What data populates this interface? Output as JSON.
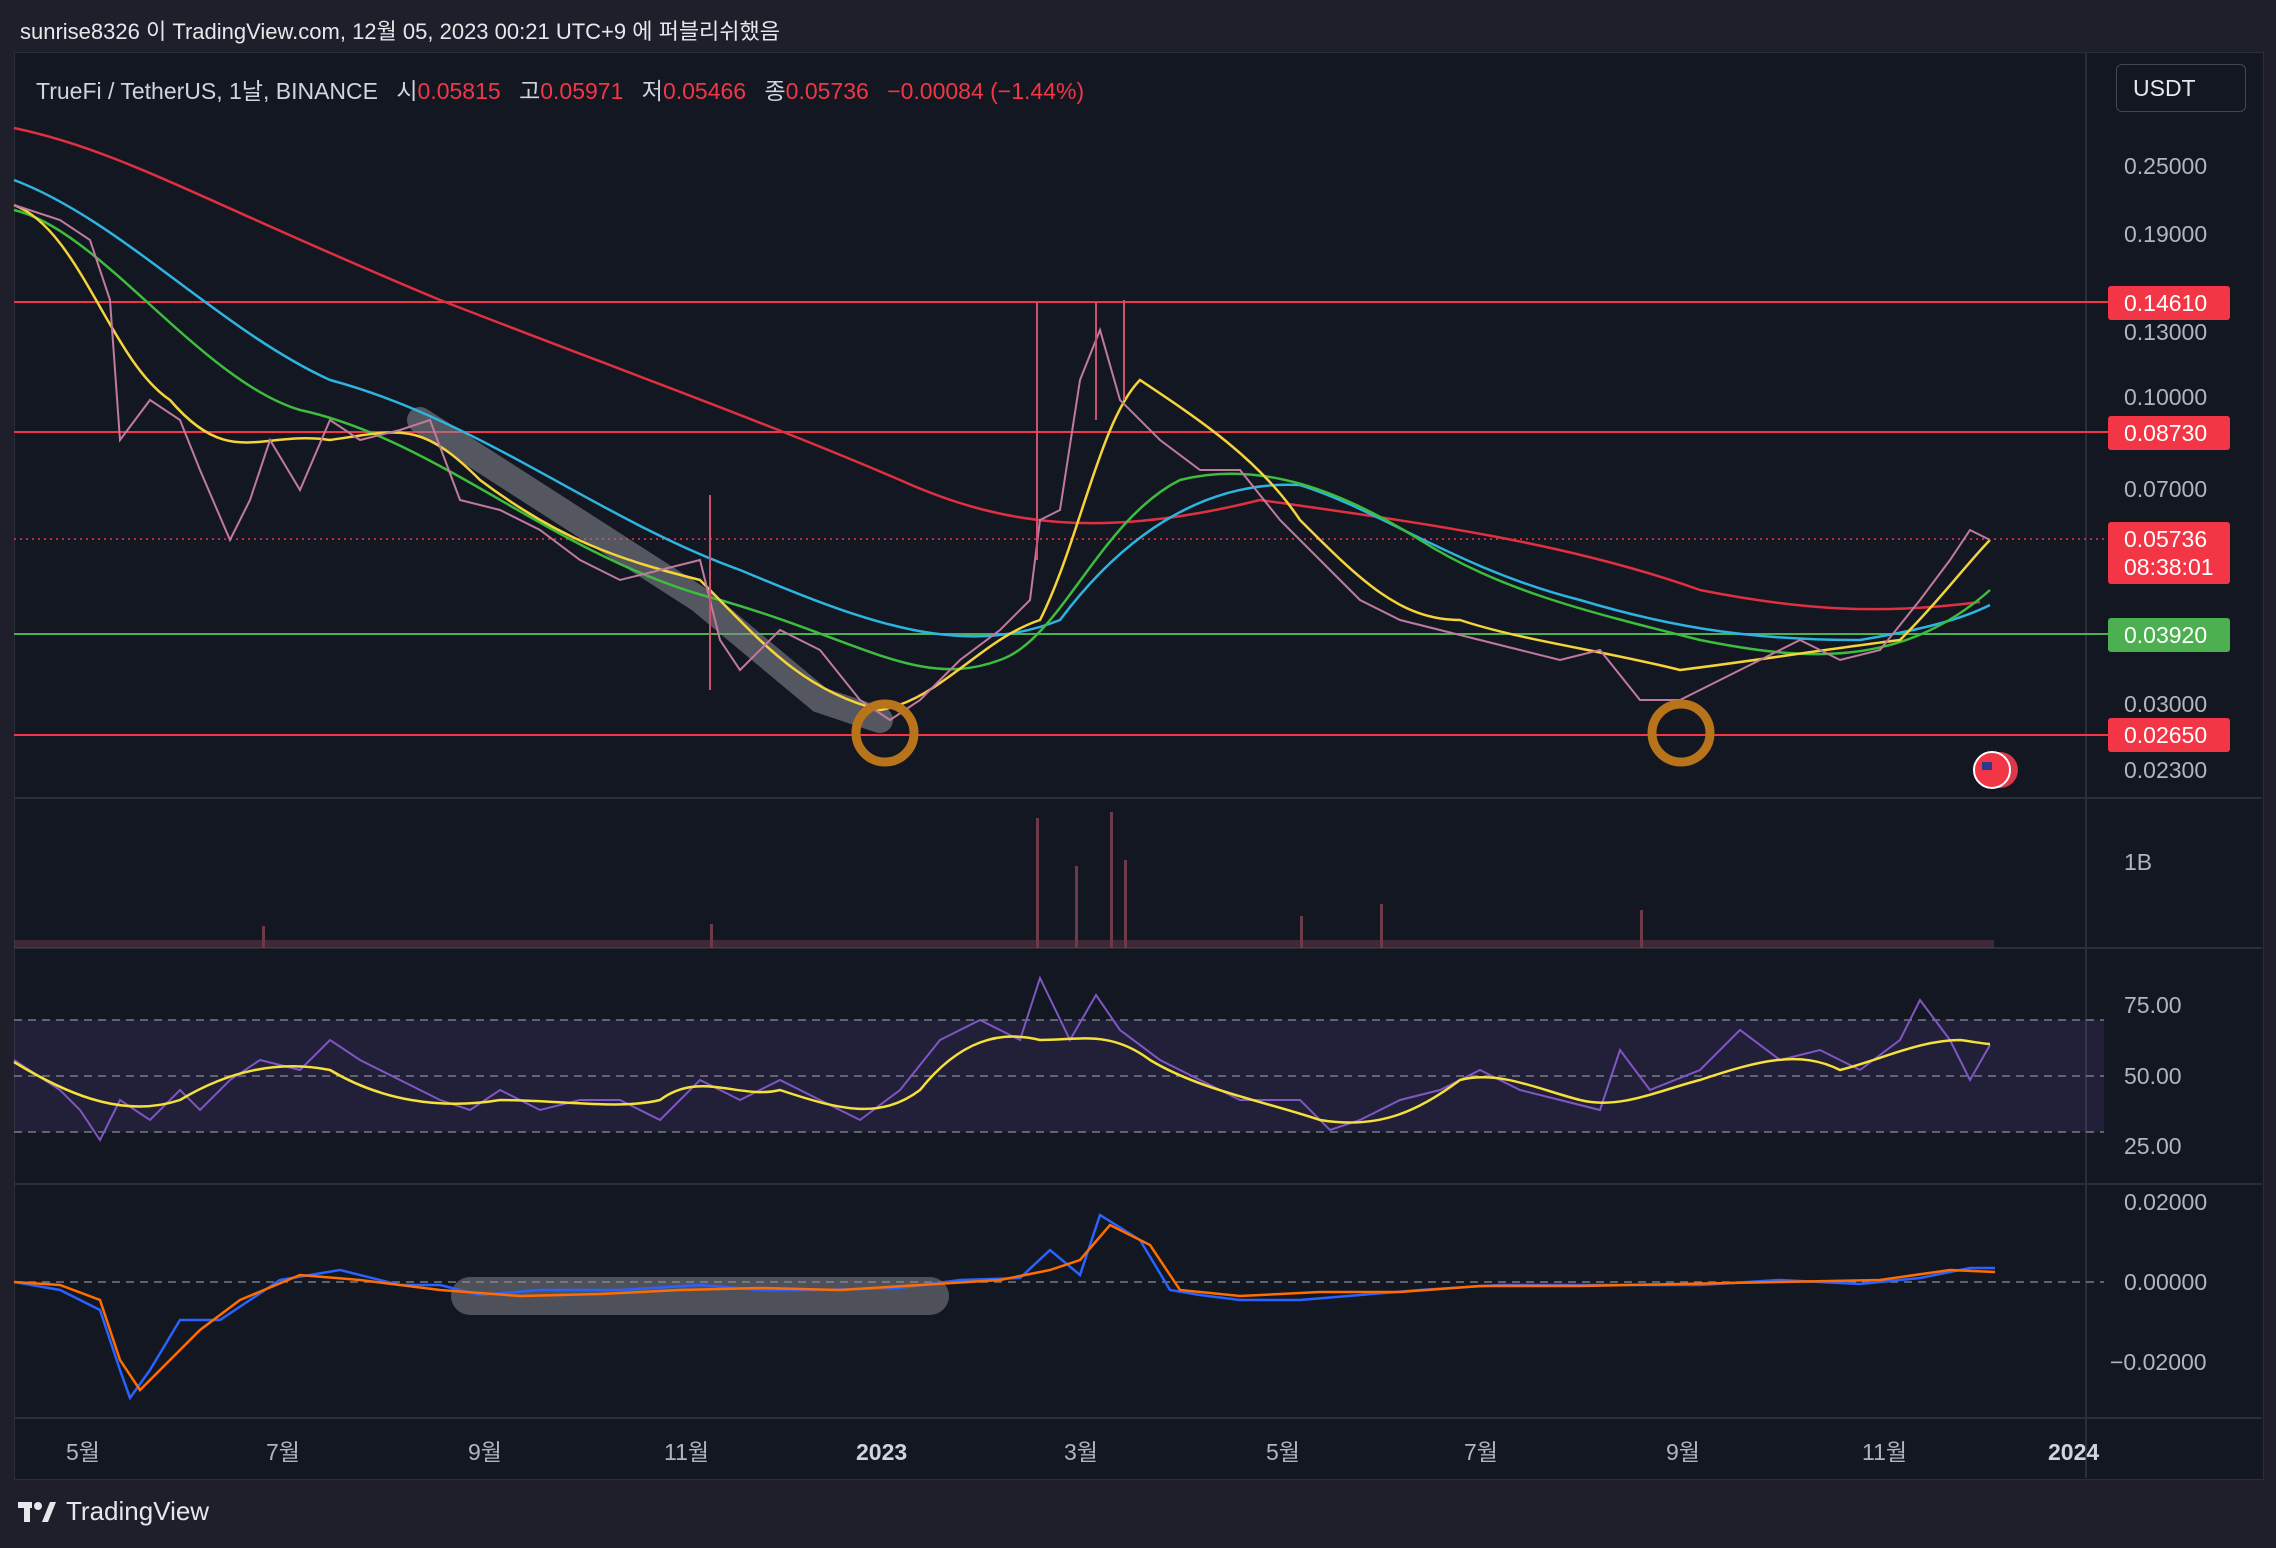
{
  "header": {
    "title": "sunrise8326 이 TradingView.com, 12월 05, 2023 00:21 UTC+9 에 퍼블리쉬했음"
  },
  "legend": {
    "symbol": "TrueFi / TetherUS, 1날, BINANCE",
    "open_label": "시",
    "open": "0.05815",
    "high_label": "고",
    "high": "0.05971",
    "low_label": "저",
    "low": "0.05466",
    "close_label": "종",
    "close": "0.05736",
    "change": "−0.00084 (−1.44%)"
  },
  "currency_button": "USDT",
  "price_axis": {
    "ticks": [
      "0.25000",
      "0.19000",
      "0.13000",
      "0.10000",
      "0.07000",
      "0.03000",
      "0.02300"
    ],
    "levels": [
      {
        "label": "0.14610",
        "color": "#f23645"
      },
      {
        "label": "0.08730",
        "color": "#f23645"
      },
      {
        "label": "0.03920",
        "color": "#4caf50"
      },
      {
        "label": "0.02650",
        "color": "#f23645"
      }
    ],
    "last_price": "0.05736",
    "countdown": "08:38:01"
  },
  "volume_axis": {
    "ticks": [
      "1B"
    ]
  },
  "rsi_axis": {
    "ticks": [
      "75.00",
      "50.00",
      "25.00"
    ]
  },
  "macd_axis": {
    "ticks": [
      "0.02000",
      "0.00000",
      "−0.02000"
    ]
  },
  "time_axis": {
    "ticks": [
      "5월",
      "7월",
      "9월",
      "11월",
      "2023",
      "3월",
      "5월",
      "7월",
      "9월",
      "11월",
      "2024"
    ]
  },
  "colors": {
    "background": "#131722",
    "level_red": "#f23645",
    "level_green": "#4caf50",
    "ma_red": "#e03040",
    "ma_cyan": "#2db4e0",
    "ma_green": "#3dbd3d",
    "ma_yellow": "#f5d33a",
    "rsi_line": "#7e57c2",
    "rsi_signal": "#f5e13a",
    "macd_line": "#2962ff",
    "macd_signal": "#ff6d00",
    "circle_marker": "#b8741a"
  },
  "footer": {
    "brand": "TradingView"
  }
}
